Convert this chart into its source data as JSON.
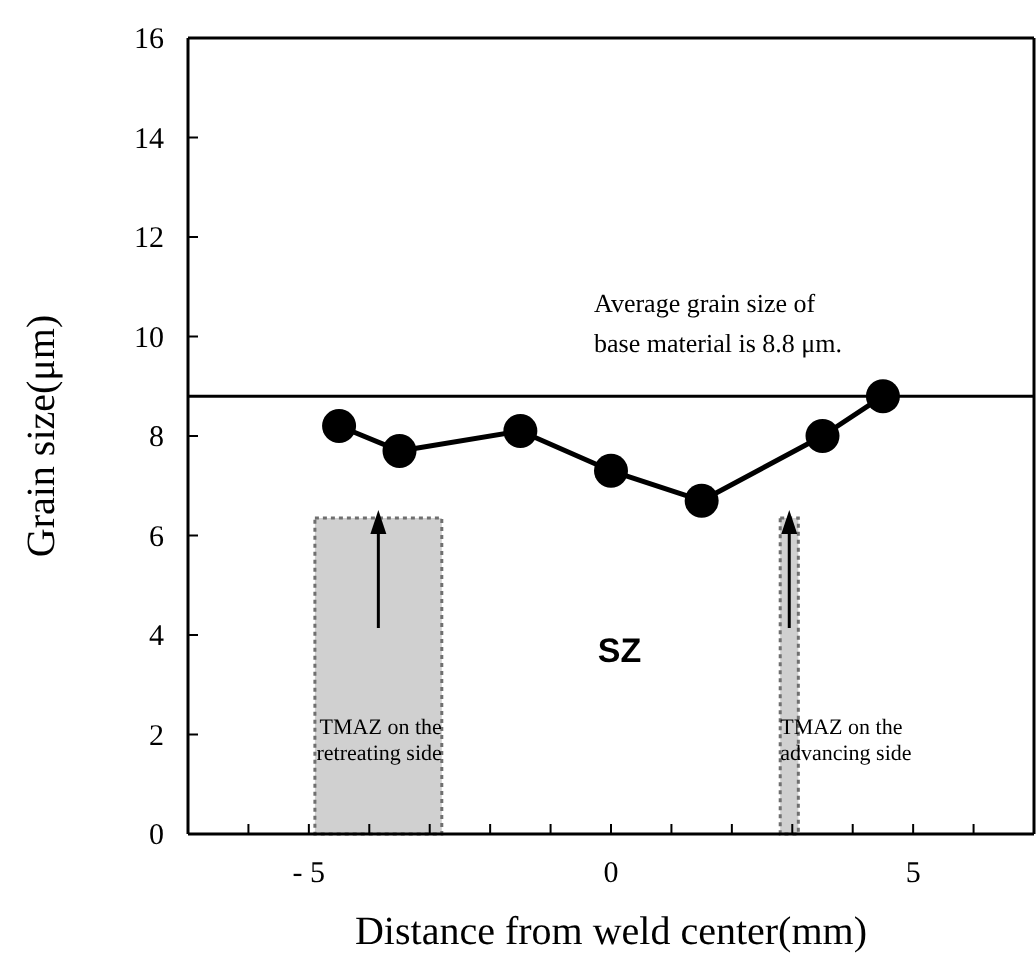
{
  "chart_data": {
    "type": "line",
    "xlabel": "Distance from weld center(mm)",
    "ylabel": "Grain size(μm)",
    "x": [
      -4.5,
      -3.5,
      -1.5,
      0,
      1.5,
      3.5,
      4.5
    ],
    "series": [
      {
        "color": "#000000",
        "values": [
          8.2,
          7.7,
          8.1,
          7.3,
          6.7,
          8.0,
          8.8
        ]
      }
    ],
    "marker": "circle",
    "line_style": "solid",
    "grid": false,
    "xlim": [
      -7,
      7
    ],
    "ylim": [
      0,
      16
    ],
    "xticks": [
      {
        "value": -6,
        "label": null
      },
      {
        "value": -5,
        "label": "- 5"
      },
      {
        "value": -4,
        "label": null
      },
      {
        "value": -3,
        "label": null
      },
      {
        "value": -2,
        "label": null
      },
      {
        "value": -1,
        "label": null
      },
      0,
      {
        "value": 1,
        "label": null
      },
      {
        "value": 2,
        "label": null
      },
      {
        "value": 3,
        "label": null
      },
      {
        "value": 4,
        "label": null
      },
      5,
      {
        "value": 6,
        "label": null
      }
    ],
    "yticks": [
      0,
      2,
      4,
      6,
      8,
      10,
      12,
      14,
      16
    ],
    "ref_lines": [
      {
        "axis": "y",
        "value": 8.8,
        "label": "Average grain size of\nbase material is 8.8 μm.",
        "color": "#000000",
        "line_style": "solid"
      }
    ],
    "bands": [
      {
        "axis": "x",
        "from": -4.9,
        "to": -2.8,
        "label": "TMAZ on the\nretreating side",
        "color": "#bdbdbd"
      },
      {
        "axis": "x",
        "from": 2.8,
        "to": 3.1,
        "label": "TMAZ on the\nadvancing side",
        "color": "#bdbdbd"
      }
    ],
    "annotations": [
      "SZ"
    ]
  }
}
